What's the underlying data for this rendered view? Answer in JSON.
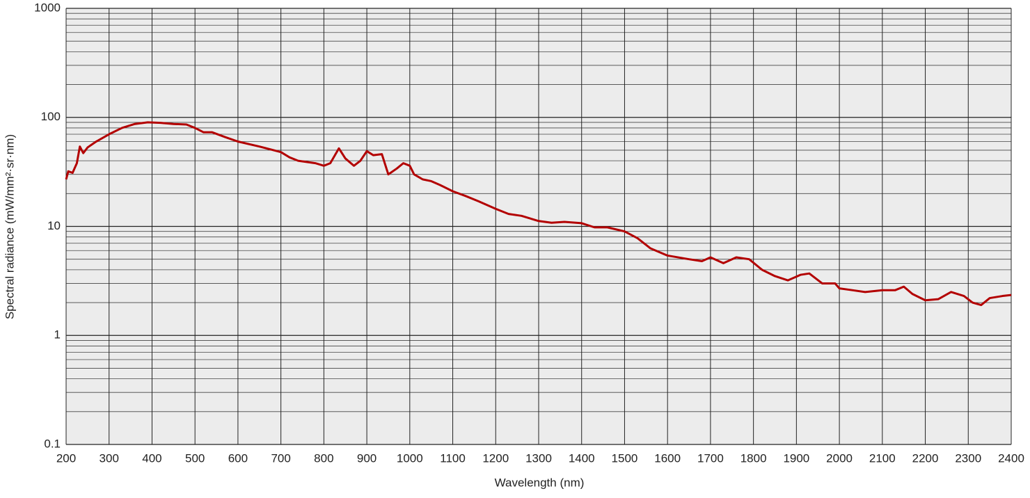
{
  "chart_data": {
    "type": "line",
    "x_label": "Wavelength (nm)",
    "y_label": "Spectral radiance (mW/mm²·sr·nm)",
    "x": [
      200,
      205,
      215,
      225,
      232,
      240,
      250,
      270,
      300,
      330,
      360,
      390,
      420,
      450,
      480,
      500,
      520,
      540,
      570,
      600,
      650,
      700,
      720,
      740,
      780,
      800,
      815,
      835,
      850,
      870,
      885,
      900,
      915,
      935,
      950,
      970,
      985,
      1000,
      1010,
      1030,
      1050,
      1070,
      1100,
      1130,
      1160,
      1200,
      1230,
      1260,
      1300,
      1330,
      1360,
      1400,
      1430,
      1460,
      1500,
      1530,
      1560,
      1600,
      1650,
      1680,
      1700,
      1730,
      1760,
      1790,
      1820,
      1850,
      1880,
      1910,
      1930,
      1960,
      1990,
      2000,
      2030,
      2060,
      2100,
      2130,
      2150,
      2170,
      2200,
      2230,
      2260,
      2290,
      2310,
      2330,
      2350,
      2380,
      2400
    ],
    "values": [
      27,
      32,
      31,
      38,
      54,
      47,
      53,
      60,
      70,
      80,
      87,
      90,
      89,
      87,
      86,
      80,
      73,
      73,
      66,
      60,
      54,
      48,
      43,
      40,
      38,
      36,
      38,
      52,
      42,
      36,
      40,
      49,
      45,
      46,
      30,
      34,
      38,
      36,
      30,
      27,
      26,
      24,
      21,
      19,
      17,
      14.5,
      13,
      12.5,
      11.2,
      10.8,
      11,
      10.7,
      9.8,
      9.8,
      9,
      7.8,
      6.3,
      5.4,
      5,
      4.8,
      5.2,
      4.6,
      5.2,
      5,
      4,
      3.5,
      3.2,
      3.6,
      3.7,
      3.0,
      3.0,
      2.7,
      2.6,
      2.5,
      2.6,
      2.6,
      2.8,
      2.4,
      2.1,
      2.15,
      2.5,
      2.3,
      2.0,
      1.9,
      2.2,
      2.3,
      2.35
    ],
    "color": "#b30000",
    "xlim": [
      200,
      2400
    ],
    "xticks": [
      200,
      300,
      400,
      500,
      600,
      700,
      800,
      900,
      1000,
      1100,
      1200,
      1300,
      1400,
      1500,
      1600,
      1700,
      1800,
      1900,
      2000,
      2100,
      2200,
      2300,
      2400
    ],
    "ylim": [
      0.1,
      1000
    ],
    "yticks": [
      0.1,
      1,
      10,
      100,
      1000
    ],
    "y_log": true,
    "grid": true,
    "minor_grid": true,
    "plot_background": "#ececec"
  }
}
